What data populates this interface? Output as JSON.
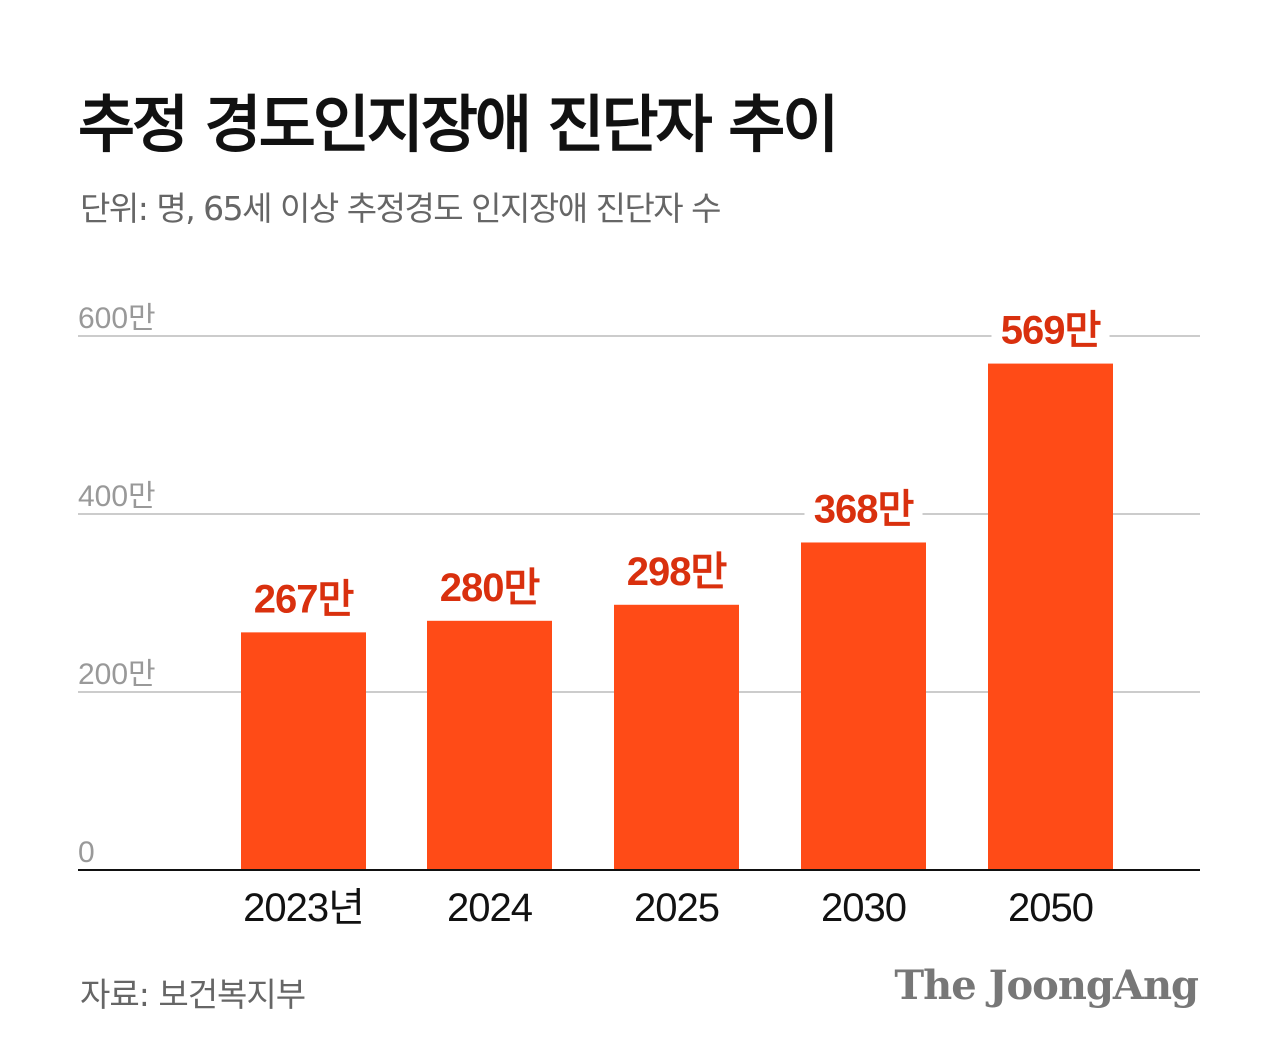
{
  "title": "추정 경도인지장애 진단자 추이",
  "subtitle": "단위: 명, 65세 이상 추정경도 인지장애 진단자 수",
  "source": "자료: 보건복지부",
  "logo": "The JoongAng",
  "colors": {
    "bar": "#ff4b17",
    "label": "#d9300e",
    "grid": "#cccccc",
    "axis": "#111111"
  },
  "chart_data": {
    "type": "bar",
    "categories": [
      "2023년",
      "2024",
      "2025",
      "2030",
      "2050"
    ],
    "values": [
      267,
      280,
      298,
      368,
      569
    ],
    "data_labels": [
      "267만",
      "280만",
      "298만",
      "368만",
      "569만"
    ],
    "yticks": [
      0,
      200,
      400,
      600
    ],
    "ytick_labels": [
      "0",
      "200만",
      "400만",
      "600만"
    ],
    "ylim": [
      0,
      600
    ],
    "grid": true,
    "unit": "만"
  }
}
